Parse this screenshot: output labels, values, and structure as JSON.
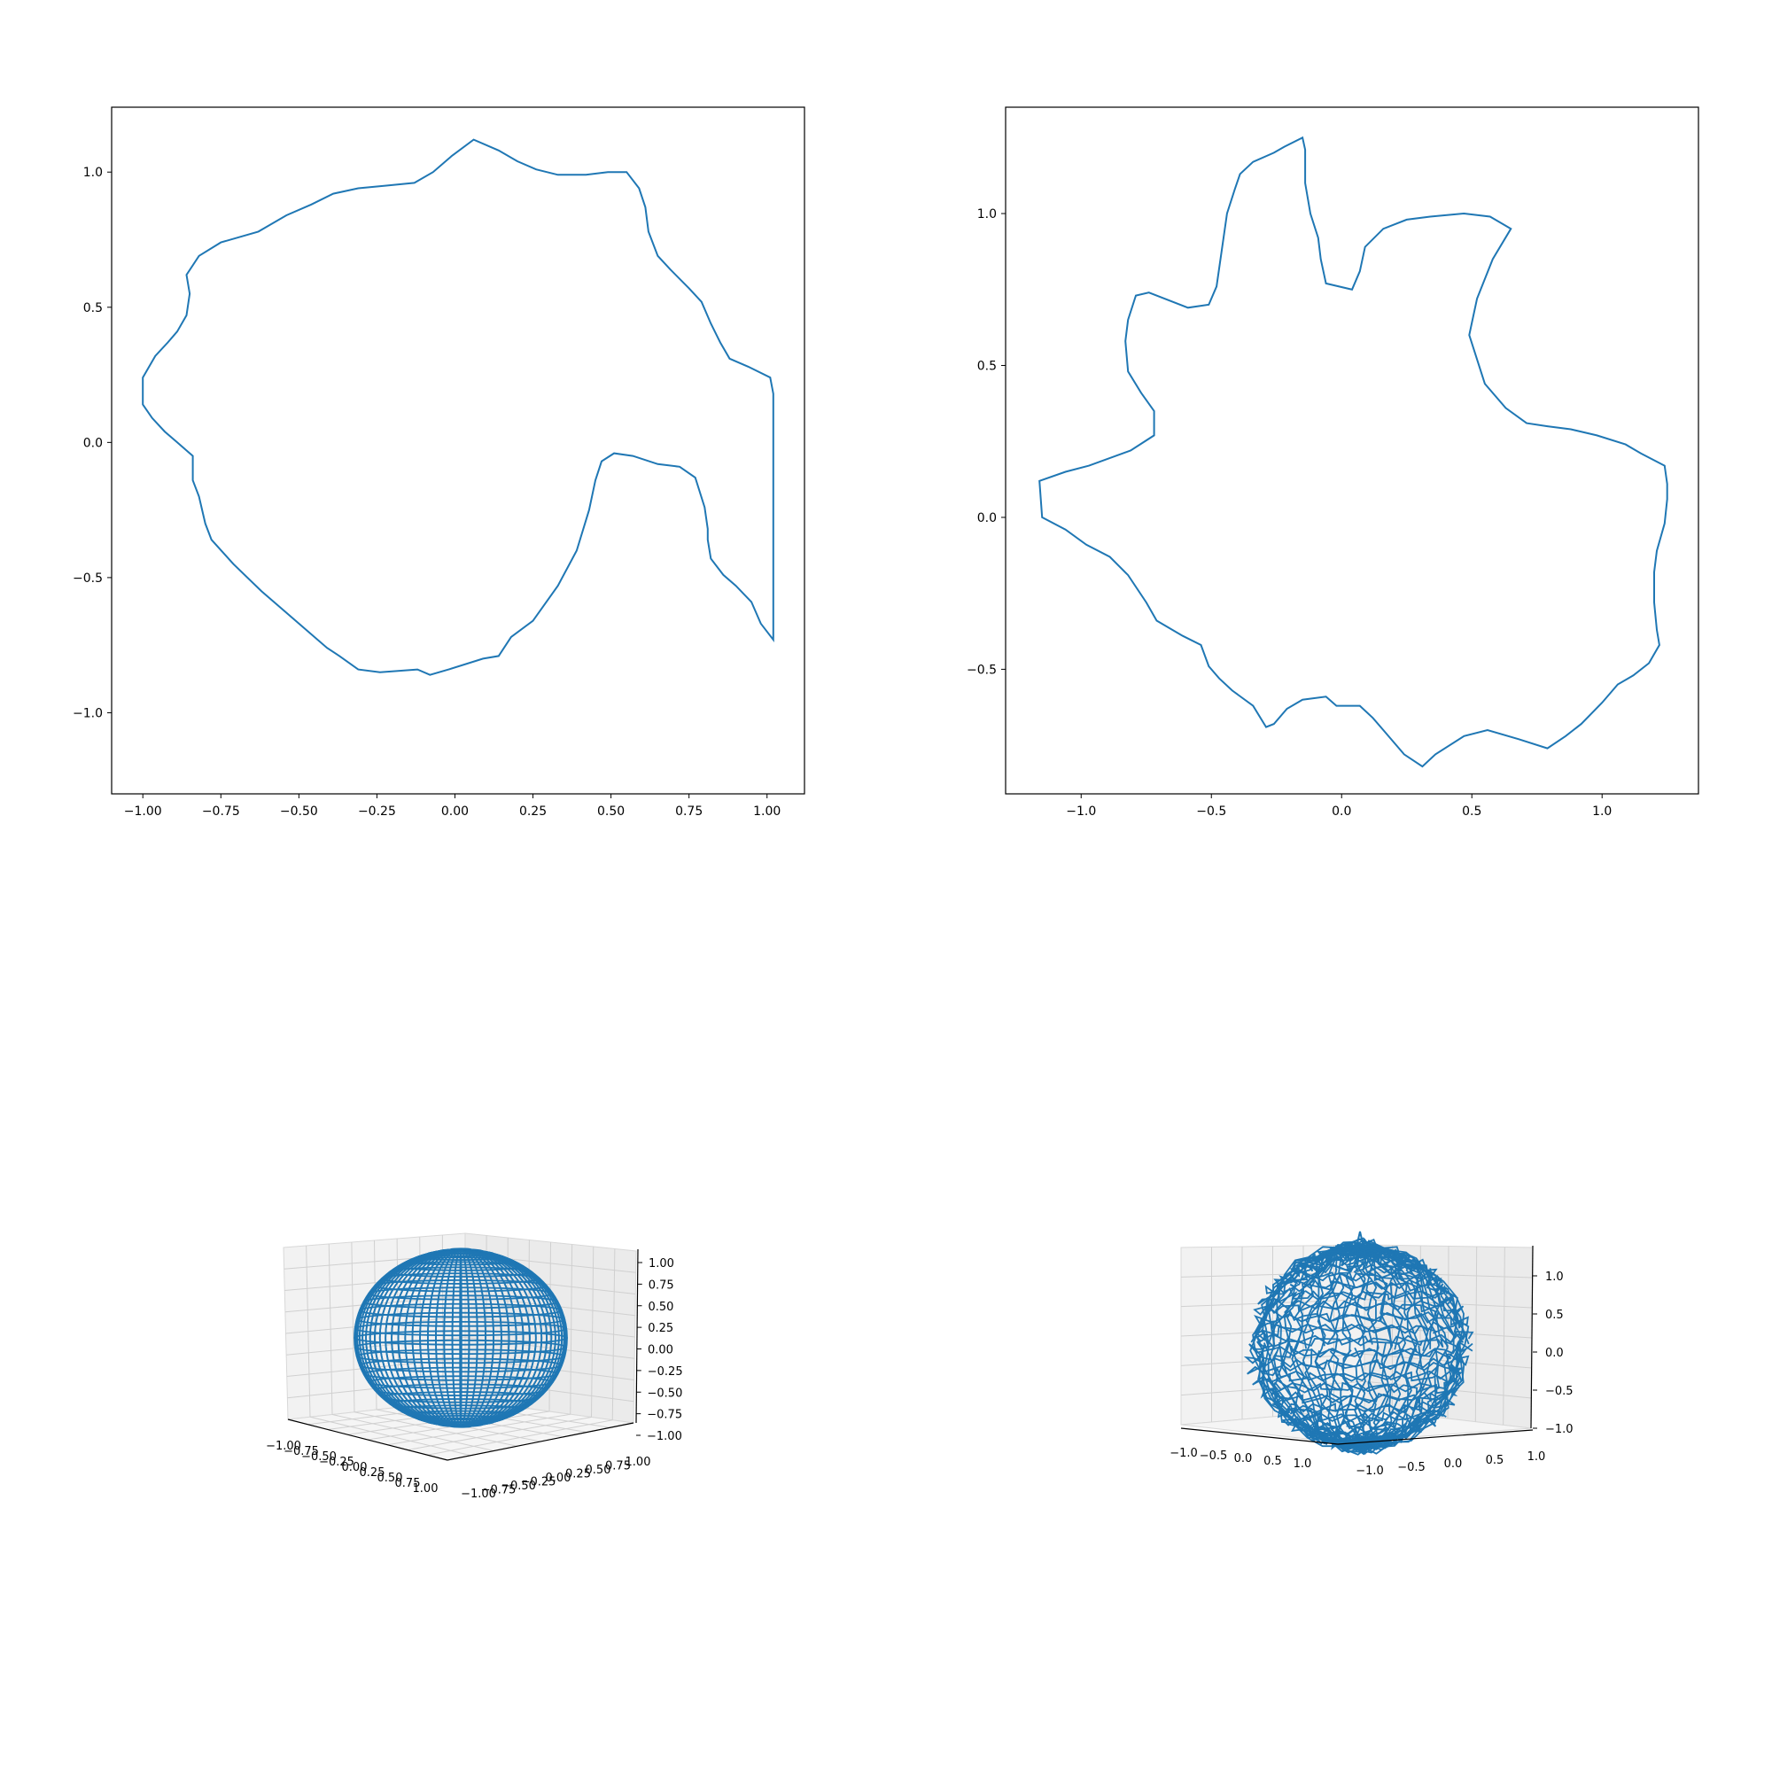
{
  "figure": {
    "background": "#ffffff",
    "line_color": "#1f77b4",
    "grid": false
  },
  "chart_data": [
    {
      "type": "line",
      "subtype": "closed-curve",
      "xlim": [
        -1.1,
        1.12
      ],
      "ylim": [
        -1.3,
        1.24
      ],
      "xticks": [
        -1.0,
        -0.75,
        -0.5,
        -0.25,
        0.0,
        0.25,
        0.5,
        0.75,
        1.0
      ],
      "yticks": [
        -1.0,
        -0.5,
        0.0,
        0.5,
        1.0
      ],
      "xtick_labels": [
        "−1.00",
        "−0.75",
        "−0.50",
        "−0.25",
        "0.00",
        "0.25",
        "0.50",
        "0.75",
        "1.00"
      ],
      "ytick_labels": [
        "−1.0",
        "−0.5",
        "0.0",
        "0.5",
        "1.0"
      ],
      "series": [
        {
          "color": "#1f77b4",
          "x": [
            1.02,
            1.01,
            0.94,
            0.88,
            0.85,
            0.82,
            0.79,
            0.75,
            0.69,
            0.65,
            0.62,
            0.61,
            0.59,
            0.55,
            0.49,
            0.42,
            0.33,
            0.26,
            0.2,
            0.14,
            0.06,
            -0.01,
            -0.07,
            -0.13,
            -0.22,
            -0.31,
            -0.39,
            -0.46,
            -0.54,
            -0.63,
            -0.75,
            -0.82,
            -0.86,
            -0.85,
            -0.86,
            -0.89,
            -0.92,
            -0.96,
            -1.0,
            -1.0,
            -0.97,
            -0.93,
            -0.89,
            -0.84,
            -0.84,
            -0.82,
            -0.8,
            -0.78,
            -0.71,
            -0.62,
            -0.55,
            -0.48,
            -0.41,
            -0.37,
            -0.31,
            -0.24,
            -0.12,
            -0.08,
            -0.02,
            0.09,
            0.14,
            0.18,
            0.25,
            0.33,
            0.39,
            0.43,
            0.45,
            0.47,
            0.51,
            0.57,
            0.65,
            0.72,
            0.77,
            0.8,
            0.81,
            0.81,
            0.82,
            0.86,
            0.9,
            0.95,
            0.98,
            1.02
          ],
          "y": [
            0.18,
            0.24,
            0.28,
            0.31,
            0.37,
            0.44,
            0.52,
            0.57,
            0.64,
            0.69,
            0.78,
            0.87,
            0.94,
            1.0,
            1.0,
            0.99,
            0.99,
            1.01,
            1.04,
            1.08,
            1.12,
            1.06,
            1.0,
            0.96,
            0.95,
            0.94,
            0.92,
            0.88,
            0.84,
            0.78,
            0.74,
            0.69,
            0.62,
            0.55,
            0.47,
            0.41,
            0.37,
            0.32,
            0.24,
            0.14,
            0.09,
            0.04,
            0.0,
            -0.05,
            -0.14,
            -0.2,
            -0.3,
            -0.36,
            -0.45,
            -0.55,
            -0.62,
            -0.69,
            -0.76,
            -0.79,
            -0.84,
            -0.85,
            -0.84,
            -0.86,
            -0.84,
            -0.8,
            -0.79,
            -0.72,
            -0.66,
            -0.53,
            -0.4,
            -0.25,
            -0.14,
            -0.07,
            -0.04,
            -0.05,
            -0.08,
            -0.09,
            -0.13,
            -0.24,
            -0.32,
            -0.36,
            -0.43,
            -0.49,
            -0.53,
            -0.59,
            -0.67,
            -0.73
          ]
        }
      ]
    },
    {
      "type": "line",
      "subtype": "closed-curve",
      "xlim": [
        -1.29,
        1.37
      ],
      "ylim": [
        -0.91,
        1.35
      ],
      "xticks": [
        -1.0,
        -0.5,
        0.0,
        0.5,
        1.0
      ],
      "yticks": [
        -0.5,
        0.0,
        0.5,
        1.0
      ],
      "xtick_labels": [
        "−1.0",
        "−0.5",
        "0.0",
        "0.5",
        "1.0"
      ],
      "ytick_labels": [
        "−0.5",
        "0.0",
        "0.5",
        "1.0"
      ],
      "series": [
        {
          "color": "#1f77b4",
          "x": [
            1.25,
            1.24,
            1.21,
            1.2,
            1.2,
            1.21,
            1.22,
            1.18,
            1.12,
            1.06,
            1.0,
            0.92,
            0.86,
            0.79,
            0.68,
            0.56,
            0.47,
            0.36,
            0.31,
            0.24,
            0.16,
            0.12,
            0.07,
            -0.02,
            -0.06,
            -0.15,
            -0.21,
            -0.26,
            -0.29,
            -0.34,
            -0.42,
            -0.47,
            -0.51,
            -0.54,
            -0.61,
            -0.71,
            -0.75,
            -0.82,
            -0.89,
            -0.98,
            -1.06,
            -1.15,
            -1.16,
            -1.06,
            -0.97,
            -0.81,
            -0.72,
            -0.72,
            -0.77,
            -0.82,
            -0.83,
            -0.82,
            -0.79,
            -0.74,
            -0.59,
            -0.51,
            -0.48,
            -0.46,
            -0.44,
            -0.41,
            -0.39,
            -0.34,
            -0.26,
            -0.22,
            -0.15,
            -0.14,
            -0.14,
            -0.14,
            -0.12,
            -0.09,
            -0.08,
            -0.06,
            0.04,
            0.07,
            0.09,
            0.16,
            0.25,
            0.34,
            0.47,
            0.57,
            0.65,
            0.58,
            0.52,
            0.5,
            0.49,
            0.55,
            0.63,
            0.71,
            0.79,
            0.88,
            0.98,
            1.09,
            1.15,
            1.24,
            1.25
          ],
          "y": [
            0.06,
            -0.02,
            -0.11,
            -0.18,
            -0.28,
            -0.37,
            -0.42,
            -0.48,
            -0.52,
            -0.55,
            -0.61,
            -0.68,
            -0.72,
            -0.76,
            -0.73,
            -0.7,
            -0.72,
            -0.78,
            -0.82,
            -0.78,
            -0.7,
            -0.66,
            -0.62,
            -0.62,
            -0.59,
            -0.6,
            -0.63,
            -0.68,
            -0.69,
            -0.62,
            -0.57,
            -0.53,
            -0.49,
            -0.42,
            -0.39,
            -0.34,
            -0.28,
            -0.19,
            -0.13,
            -0.09,
            -0.04,
            0.0,
            0.12,
            0.15,
            0.17,
            0.22,
            0.27,
            0.35,
            0.41,
            0.48,
            0.58,
            0.65,
            0.73,
            0.74,
            0.69,
            0.7,
            0.76,
            0.88,
            1.0,
            1.08,
            1.13,
            1.17,
            1.2,
            1.22,
            1.25,
            1.21,
            1.15,
            1.1,
            1.0,
            0.92,
            0.85,
            0.77,
            0.75,
            0.81,
            0.89,
            0.95,
            0.98,
            0.99,
            1.0,
            0.99,
            0.95,
            0.85,
            0.72,
            0.64,
            0.6,
            0.44,
            0.36,
            0.31,
            0.3,
            0.29,
            0.27,
            0.24,
            0.21,
            0.17,
            0.11
          ]
        }
      ]
    },
    {
      "type": "3d-wireframe",
      "surface": "sphere",
      "color": "#1f77b4",
      "x_tick_labels": [
        "−1.00",
        "−0.75",
        "−0.50",
        "−0.25",
        "0.00",
        "0.25",
        "0.50",
        "0.75",
        "1.00"
      ],
      "y_tick_labels": [
        "−1.00",
        "−0.75",
        "−0.50",
        "−0.25",
        "0.00",
        "0.25",
        "0.50",
        "0.75",
        "1.00"
      ],
      "z_tick_labels": [
        "1.00",
        "0.75",
        "0.50",
        "0.25",
        "0.00",
        "−0.25",
        "−0.50",
        "−0.75",
        "−1.00"
      ],
      "xlim": [
        -1.0,
        1.0
      ],
      "ylim": [
        -1.0,
        1.0
      ],
      "zlim": [
        -1.0,
        1.0
      ],
      "grid": true
    },
    {
      "type": "3d-wireframe",
      "surface": "noisy sphere",
      "color": "#1f77b4",
      "x_tick_labels": [
        "−1.0",
        "−0.5",
        "0.0",
        "0.5",
        "1.0"
      ],
      "y_tick_labels": [
        "−1.0",
        "−0.5",
        "0.0",
        "0.5",
        "1.0"
      ],
      "z_tick_labels": [
        "1.0",
        "0.5",
        "0.0",
        "−0.5",
        "−1.0"
      ],
      "xlim": [
        -1.0,
        1.0
      ],
      "ylim": [
        -1.0,
        1.0
      ],
      "zlim": [
        -1.2,
        1.3
      ],
      "grid": true
    }
  ]
}
